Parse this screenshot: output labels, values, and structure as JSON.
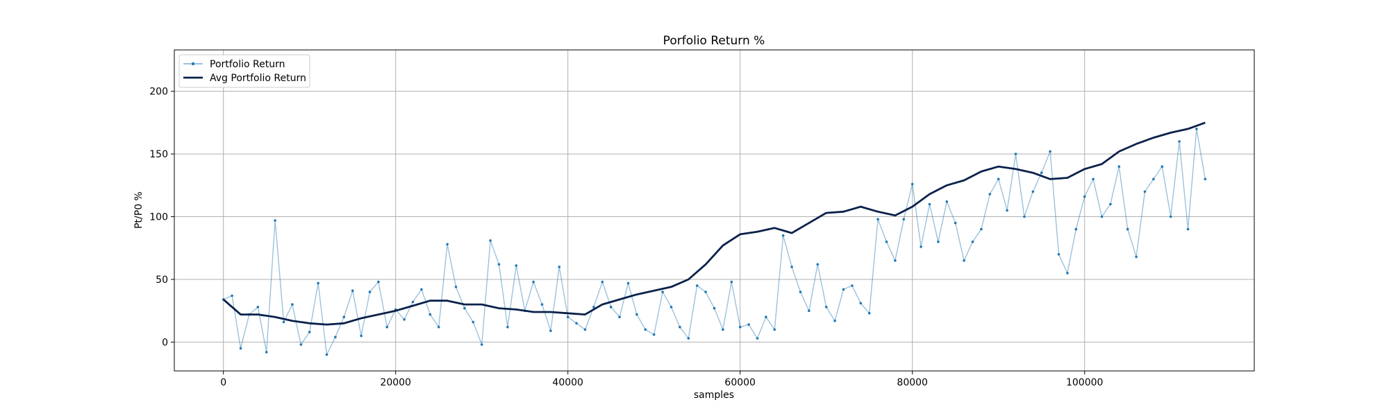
{
  "chart_data": {
    "type": "line",
    "title": "Porfolio Return %",
    "xlabel": "samples",
    "ylabel": "Pt/P0 %",
    "xlim": [
      -5700,
      119700
    ],
    "ylim": [
      -23,
      233
    ],
    "xticks": [
      0,
      20000,
      40000,
      60000,
      80000,
      100000
    ],
    "yticks": [
      0,
      50,
      100,
      150,
      200
    ],
    "grid": true,
    "legend_position": "top-left",
    "colors": {
      "portfolio": "#1f77b4",
      "average": "#08204a",
      "grid": "#b0b0b0"
    },
    "series": [
      {
        "name": "Portfolio Return",
        "style": "thin line with small markers",
        "x": [
          0,
          1000,
          2000,
          3000,
          4000,
          5000,
          6000,
          7000,
          8000,
          9000,
          10000,
          11000,
          12000,
          13000,
          14000,
          15000,
          16000,
          17000,
          18000,
          19000,
          20000,
          21000,
          22000,
          23000,
          24000,
          25000,
          26000,
          27000,
          28000,
          29000,
          30000,
          31000,
          32000,
          33000,
          34000,
          35000,
          36000,
          37000,
          38000,
          39000,
          40000,
          41000,
          42000,
          43000,
          44000,
          45000,
          46000,
          47000,
          48000,
          49000,
          50000,
          51000,
          52000,
          53000,
          54000,
          55000,
          56000,
          57000,
          58000,
          59000,
          60000,
          61000,
          62000,
          63000,
          64000,
          65000,
          66000,
          67000,
          68000,
          69000,
          70000,
          71000,
          72000,
          73000,
          74000,
          75000,
          76000,
          77000,
          78000,
          79000,
          80000,
          81000,
          82000,
          83000,
          84000,
          85000,
          86000,
          87000,
          88000,
          89000,
          90000,
          91000,
          92000,
          93000,
          94000,
          95000,
          96000,
          97000,
          98000,
          99000,
          100000,
          101000,
          102000,
          103000,
          104000,
          105000,
          106000,
          107000,
          108000,
          109000,
          110000,
          111000,
          112000,
          113000,
          114000
        ],
        "values": [
          34,
          37,
          -5,
          22,
          28,
          -8,
          97,
          16,
          30,
          -2,
          8,
          47,
          -10,
          4,
          20,
          41,
          5,
          40,
          48,
          12,
          26,
          18,
          32,
          42,
          22,
          12,
          78,
          44,
          27,
          16,
          -2,
          81,
          62,
          12,
          61,
          25,
          48,
          30,
          9,
          60,
          20,
          15,
          10,
          28,
          48,
          28,
          20,
          47,
          22,
          10,
          6,
          40,
          28,
          12,
          3,
          45,
          40,
          27,
          10,
          48,
          12,
          14,
          3,
          20,
          10,
          85,
          60,
          40,
          25,
          62,
          28,
          17,
          42,
          45,
          31,
          23,
          98,
          80,
          65,
          98,
          126,
          76,
          110,
          80,
          112,
          95,
          65,
          80,
          90,
          118,
          130,
          105,
          150,
          100,
          120,
          135,
          152,
          70,
          55,
          90,
          116,
          130,
          100,
          110,
          140,
          90,
          68,
          120,
          130,
          140,
          100,
          160,
          90,
          170,
          130
        ]
      },
      {
        "name": "Avg Portfolio Return",
        "style": "thick line",
        "x": [
          0,
          2000,
          4000,
          6000,
          8000,
          10000,
          12000,
          14000,
          16000,
          18000,
          20000,
          22000,
          24000,
          26000,
          28000,
          30000,
          32000,
          34000,
          36000,
          38000,
          40000,
          42000,
          44000,
          46000,
          48000,
          50000,
          52000,
          54000,
          56000,
          58000,
          60000,
          62000,
          64000,
          66000,
          68000,
          70000,
          72000,
          74000,
          76000,
          78000,
          80000,
          82000,
          84000,
          86000,
          88000,
          90000,
          92000,
          94000,
          96000,
          98000,
          100000,
          102000,
          104000,
          106000,
          108000,
          110000,
          112000,
          114000
        ],
        "values": [
          34,
          22,
          22,
          20,
          17,
          15,
          14,
          15,
          19,
          22,
          25,
          29,
          33,
          33,
          30,
          30,
          27,
          26,
          24,
          24,
          23,
          22,
          30,
          34,
          38,
          41,
          44,
          50,
          62,
          77,
          86,
          88,
          91,
          87,
          95,
          103,
          104,
          108,
          104,
          101,
          108,
          118,
          125,
          129,
          136,
          140,
          138,
          135,
          130,
          131,
          138,
          142,
          152,
          158,
          163,
          167,
          170,
          175
        ]
      }
    ]
  },
  "legend": {
    "items": [
      "Portfolio Return",
      "Avg Portfolio Return"
    ]
  }
}
